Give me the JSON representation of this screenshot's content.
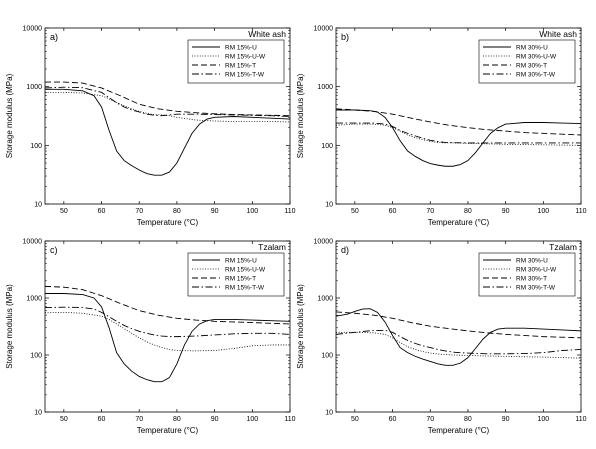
{
  "chart_data": [
    {
      "type": "line",
      "panel": "a)",
      "wood": "White ash",
      "xlabel": "Temperature (°C)",
      "ylabel": "Storage modulus (MPa)",
      "xlim": [
        45,
        110
      ],
      "ylim": [
        10,
        10000
      ],
      "yscale": "log",
      "xticks": [
        50,
        60,
        70,
        80,
        90,
        100,
        110
      ],
      "yticks": [
        10,
        100,
        1000,
        10000
      ],
      "legend_position": "top-right",
      "series": [
        {
          "name": "RM 15%-U",
          "style": "solid",
          "x": [
            45,
            50,
            55,
            58,
            60,
            62,
            64,
            66,
            68,
            70,
            72,
            74,
            76,
            78,
            80,
            82,
            84,
            86,
            88,
            90,
            95,
            100,
            105,
            110
          ],
          "y": [
            900,
            900,
            850,
            700,
            450,
            180,
            80,
            55,
            45,
            38,
            33,
            31,
            31,
            35,
            50,
            90,
            160,
            230,
            280,
            300,
            310,
            300,
            290,
            280
          ]
        },
        {
          "name": "RM 15%-U-W",
          "style": "dotted",
          "x": [
            45,
            50,
            55,
            60,
            62,
            64,
            66,
            68,
            70,
            72,
            74,
            76,
            78,
            80,
            85,
            90,
            95,
            100,
            105,
            110
          ],
          "y": [
            800,
            800,
            780,
            700,
            620,
            540,
            470,
            420,
            380,
            350,
            335,
            330,
            320,
            300,
            270,
            260,
            255,
            255,
            255,
            250
          ]
        },
        {
          "name": "RM 15%-T",
          "style": "dashed",
          "x": [
            45,
            50,
            55,
            60,
            65,
            70,
            75,
            80,
            85,
            90,
            95,
            100,
            105,
            110
          ],
          "y": [
            1200,
            1200,
            1150,
            950,
            700,
            500,
            420,
            380,
            360,
            345,
            335,
            330,
            325,
            320
          ]
        },
        {
          "name": "RM 15%-T-W",
          "style": "dashdot",
          "x": [
            45,
            50,
            55,
            60,
            62,
            64,
            66,
            68,
            70,
            72,
            74,
            76,
            78,
            80,
            85,
            90,
            95,
            100,
            105,
            110
          ],
          "y": [
            950,
            980,
            960,
            800,
            650,
            530,
            450,
            400,
            370,
            340,
            325,
            320,
            330,
            340,
            340,
            335,
            330,
            325,
            320,
            310
          ]
        }
      ]
    },
    {
      "type": "line",
      "panel": "b)",
      "wood": "White ash",
      "xlabel": "Temperature (°C)",
      "ylabel": "Storage modulus (MPa)",
      "xlim": [
        45,
        110
      ],
      "ylim": [
        10,
        10000
      ],
      "yscale": "log",
      "xticks": [
        50,
        60,
        70,
        80,
        90,
        100,
        110
      ],
      "yticks": [
        10,
        100,
        1000,
        10000
      ],
      "legend_position": "top-right",
      "series": [
        {
          "name": "RM 30%-U",
          "style": "solid",
          "x": [
            45,
            50,
            54,
            56,
            58,
            60,
            62,
            64,
            66,
            68,
            70,
            72,
            74,
            76,
            78,
            80,
            82,
            84,
            86,
            88,
            90,
            95,
            100,
            105,
            110
          ],
          "y": [
            400,
            400,
            390,
            370,
            300,
            200,
            120,
            80,
            65,
            55,
            49,
            46,
            44,
            44,
            47,
            55,
            75,
            110,
            160,
            200,
            230,
            245,
            245,
            240,
            235
          ]
        },
        {
          "name": "RM 30%-U-W",
          "style": "dotted",
          "x": [
            45,
            50,
            55,
            58,
            60,
            62,
            64,
            66,
            68,
            70,
            72,
            74,
            76,
            80,
            85,
            90,
            95,
            100,
            105,
            110
          ],
          "y": [
            220,
            230,
            230,
            220,
            200,
            175,
            150,
            135,
            125,
            117,
            112,
            110,
            110,
            108,
            106,
            104,
            103,
            102,
            101,
            100
          ]
        },
        {
          "name": "RM 30%-T",
          "style": "dashed",
          "x": [
            45,
            50,
            55,
            60,
            65,
            70,
            75,
            80,
            85,
            90,
            95,
            100,
            105,
            110
          ],
          "y": [
            420,
            400,
            380,
            340,
            290,
            250,
            220,
            200,
            185,
            175,
            165,
            160,
            155,
            150
          ]
        },
        {
          "name": "RM 30%-T-W",
          "style": "dashdot",
          "x": [
            45,
            50,
            55,
            58,
            60,
            62,
            64,
            66,
            68,
            70,
            72,
            74,
            76,
            80,
            85,
            90,
            95,
            100,
            105,
            110
          ],
          "y": [
            240,
            240,
            240,
            230,
            210,
            180,
            160,
            145,
            132,
            122,
            116,
            112,
            111,
            110,
            110,
            110,
            110,
            110,
            110,
            110
          ]
        }
      ]
    },
    {
      "type": "line",
      "panel": "c)",
      "wood": "Tzalam",
      "xlabel": "Temperature (°C)",
      "ylabel": "Storage modulus (MPa)",
      "xlim": [
        45,
        110
      ],
      "ylim": [
        10,
        10000
      ],
      "yscale": "log",
      "xticks": [
        50,
        60,
        70,
        80,
        90,
        100,
        110
      ],
      "yticks": [
        10,
        100,
        1000,
        10000
      ],
      "legend_position": "top-right",
      "series": [
        {
          "name": "RM 15%-U",
          "style": "solid",
          "x": [
            45,
            50,
            55,
            58,
            60,
            62,
            64,
            66,
            68,
            70,
            72,
            74,
            76,
            78,
            80,
            82,
            84,
            86,
            88,
            90,
            95,
            100,
            105,
            110
          ],
          "y": [
            1200,
            1200,
            1150,
            1000,
            700,
            300,
            110,
            70,
            52,
            42,
            37,
            34,
            34,
            40,
            70,
            150,
            260,
            350,
            400,
            420,
            420,
            410,
            400,
            390
          ]
        },
        {
          "name": "RM 15%-U-W",
          "style": "dotted",
          "x": [
            45,
            50,
            55,
            60,
            62,
            64,
            66,
            68,
            70,
            72,
            74,
            76,
            78,
            80,
            85,
            90,
            95,
            100,
            105,
            110
          ],
          "y": [
            550,
            560,
            540,
            480,
            420,
            350,
            290,
            240,
            200,
            170,
            150,
            135,
            125,
            120,
            118,
            120,
            130,
            145,
            150,
            150
          ]
        },
        {
          "name": "RM 15%-T",
          "style": "dashed",
          "x": [
            45,
            50,
            55,
            60,
            65,
            70,
            75,
            80,
            85,
            90,
            95,
            100,
            105,
            110
          ],
          "y": [
            1600,
            1550,
            1400,
            1100,
            800,
            600,
            500,
            440,
            410,
            390,
            380,
            370,
            360,
            350
          ]
        },
        {
          "name": "RM 15%-T-W",
          "style": "dashdot",
          "x": [
            45,
            50,
            55,
            58,
            60,
            62,
            64,
            66,
            68,
            70,
            72,
            74,
            76,
            78,
            80,
            85,
            90,
            95,
            100,
            105,
            110
          ],
          "y": [
            680,
            690,
            680,
            640,
            560,
            470,
            390,
            330,
            290,
            260,
            240,
            225,
            215,
            210,
            210,
            215,
            225,
            235,
            240,
            240,
            230
          ]
        }
      ]
    },
    {
      "type": "line",
      "panel": "d)",
      "wood": "Tzalam",
      "xlabel": "Temperature (°C)",
      "ylabel": "Storage modulus (MPa)",
      "xlim": [
        45,
        110
      ],
      "ylim": [
        10,
        10000
      ],
      "yscale": "log",
      "xticks": [
        50,
        60,
        70,
        80,
        90,
        100,
        110
      ],
      "yticks": [
        10,
        100,
        1000,
        10000
      ],
      "legend_position": "top-right",
      "series": [
        {
          "name": "RM 30%-U",
          "style": "solid",
          "x": [
            45,
            48,
            50,
            52,
            54,
            56,
            58,
            60,
            62,
            64,
            66,
            68,
            70,
            72,
            74,
            76,
            78,
            80,
            82,
            84,
            86,
            88,
            90,
            95,
            100,
            105,
            110
          ],
          "y": [
            480,
            520,
            580,
            640,
            650,
            560,
            380,
            220,
            135,
            110,
            95,
            85,
            77,
            70,
            66,
            66,
            72,
            90,
            130,
            190,
            250,
            285,
            295,
            295,
            285,
            275,
            265
          ]
        },
        {
          "name": "RM 30%-U-W",
          "style": "dotted",
          "x": [
            45,
            50,
            55,
            58,
            60,
            62,
            64,
            66,
            68,
            70,
            72,
            74,
            76,
            80,
            85,
            90,
            95,
            100,
            105,
            110
          ],
          "y": [
            250,
            250,
            245,
            230,
            200,
            165,
            140,
            125,
            115,
            108,
            104,
            102,
            100,
            98,
            96,
            95,
            93,
            92,
            90,
            88
          ]
        },
        {
          "name": "RM 30%-T",
          "style": "dashed",
          "x": [
            45,
            50,
            55,
            60,
            65,
            70,
            75,
            80,
            85,
            90,
            95,
            100,
            105,
            110
          ],
          "y": [
            570,
            540,
            500,
            440,
            370,
            320,
            290,
            265,
            245,
            230,
            220,
            210,
            205,
            200
          ]
        },
        {
          "name": "RM 30%-T-W",
          "style": "dashdot",
          "x": [
            45,
            50,
            55,
            58,
            60,
            62,
            64,
            66,
            68,
            70,
            72,
            74,
            76,
            80,
            85,
            90,
            95,
            100,
            105,
            110
          ],
          "y": [
            230,
            250,
            270,
            270,
            250,
            210,
            180,
            160,
            145,
            135,
            125,
            118,
            112,
            108,
            105,
            105,
            106,
            110,
            120,
            125
          ]
        }
      ]
    }
  ]
}
